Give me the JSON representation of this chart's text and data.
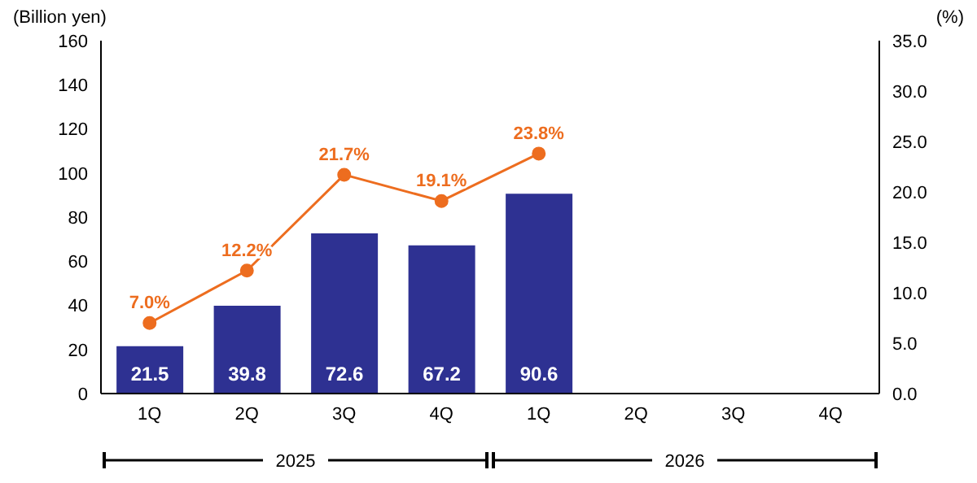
{
  "chart_data": {
    "type": "bar",
    "ylabel": "(Billion yen)",
    "y2label": "(%)",
    "categories": [
      "1Q",
      "2Q",
      "3Q",
      "4Q",
      "1Q",
      "2Q",
      "3Q",
      "4Q"
    ],
    "series": [
      {
        "color": "#2e3192",
        "values": [
          21.5,
          39.8,
          72.6,
          67.2,
          90.6,
          null,
          null,
          null
        ],
        "value_labels": [
          "21.5",
          "39.8",
          "72.6",
          "67.2",
          "90.6",
          null,
          null,
          null
        ]
      },
      {
        "type": "line",
        "axis": "y2",
        "color": "#ed6d1f",
        "values": [
          7.0,
          12.2,
          21.7,
          19.1,
          23.8,
          null,
          null,
          null
        ],
        "value_labels": [
          "7.0%",
          "12.2%",
          "21.7%",
          "19.1%",
          "23.8%",
          null,
          null,
          null
        ]
      }
    ],
    "ylim": [
      0,
      160
    ],
    "yticks": [
      0,
      20,
      40,
      60,
      80,
      100,
      120,
      140,
      160
    ],
    "y2lim": [
      0,
      35
    ],
    "y2ticks": [
      {
        "value": 0,
        "label": "0.0"
      },
      {
        "value": 5,
        "label": "5.0"
      },
      {
        "value": 10,
        "label": "10.0"
      },
      {
        "value": 15,
        "label": "15.0"
      },
      {
        "value": 20,
        "label": "20.0"
      },
      {
        "value": 25,
        "label": "25.0"
      },
      {
        "value": 30,
        "label": "30.0"
      },
      {
        "value": 35,
        "label": "35.0"
      }
    ],
    "marker": "circle",
    "grid": false,
    "annotations": [
      "2025",
      "2026"
    ]
  }
}
